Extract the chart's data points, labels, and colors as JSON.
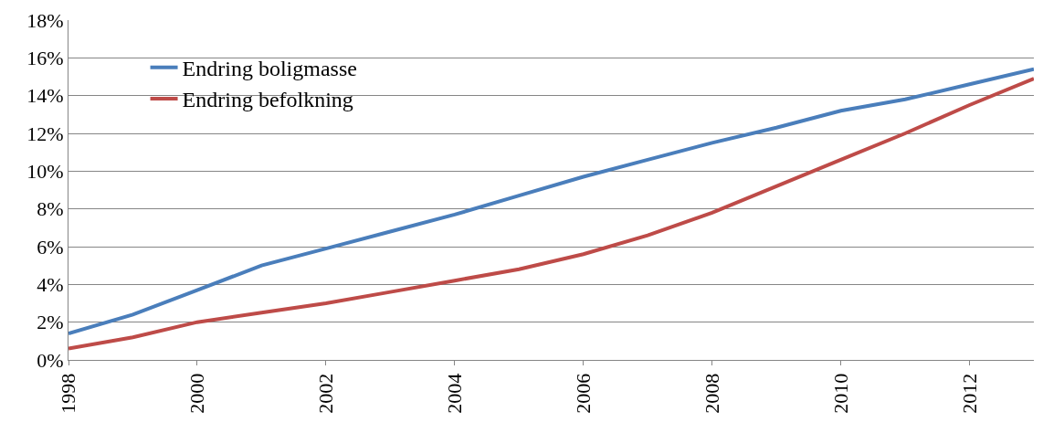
{
  "chart_data": {
    "type": "line",
    "x": [
      1998,
      1999,
      2000,
      2001,
      2002,
      2003,
      2004,
      2005,
      2006,
      2007,
      2008,
      2009,
      2010,
      2011,
      2012,
      2013
    ],
    "series": [
      {
        "name": "Endring boligmasse",
        "color": "#4a7ebb",
        "values": [
          1.4,
          2.4,
          3.7,
          5.0,
          5.9,
          6.8,
          7.7,
          8.7,
          9.7,
          10.6,
          11.5,
          12.3,
          13.2,
          13.8,
          14.6,
          15.4
        ]
      },
      {
        "name": "Endring befolkning",
        "color": "#be4b48",
        "values": [
          0.6,
          1.2,
          2.0,
          2.5,
          3.0,
          3.6,
          4.2,
          4.8,
          5.6,
          6.6,
          7.8,
          9.2,
          10.6,
          12.0,
          13.5,
          14.9
        ]
      }
    ],
    "xlim": [
      1998,
      2013
    ],
    "xticks": [
      1998,
      2000,
      2002,
      2004,
      2006,
      2008,
      2010,
      2012
    ],
    "ylim": [
      0,
      18
    ],
    "yticks": [
      {
        "value": 0,
        "label": "0%"
      },
      {
        "value": 2,
        "label": "2%"
      },
      {
        "value": 4,
        "label": "4%"
      },
      {
        "value": 6,
        "label": "6%"
      },
      {
        "value": 8,
        "label": "8%"
      },
      {
        "value": 10,
        "label": "10%"
      },
      {
        "value": 12,
        "label": "12%"
      },
      {
        "value": 14,
        "label": "14%"
      },
      {
        "value": 16,
        "label": "16%"
      },
      {
        "value": 18,
        "label": "18%"
      }
    ],
    "grid": "y",
    "legend": "top left",
    "marker": "none",
    "line_style": "solid"
  }
}
